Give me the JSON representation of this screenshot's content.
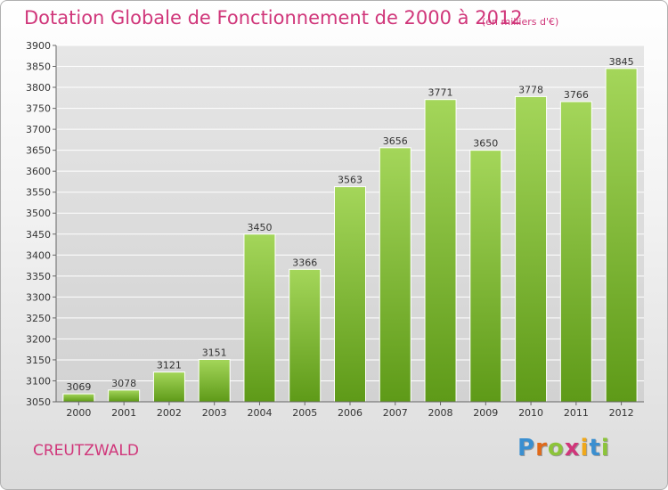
{
  "header": {
    "title": "Dotation Globale de Fonctionnement de 2000 à 2012",
    "subtitle": "(en milliers d'€)"
  },
  "footer": {
    "commune": "CREUTZWALD",
    "logo_letters": [
      "P",
      "r",
      "o",
      "x",
      "i",
      "t",
      "i"
    ],
    "logo_colors": [
      "#3a8fd0",
      "#e06a1a",
      "#8cc43a",
      "#d0367a",
      "#f0a81a",
      "#3a8fd0",
      "#8cc43a"
    ]
  },
  "chart_data": {
    "type": "bar",
    "title": "Dotation Globale de Fonctionnement de 2000 à 2012",
    "subtitle": "(en milliers d'€)",
    "xlabel": "",
    "ylabel": "",
    "categories": [
      "2000",
      "2001",
      "2002",
      "2003",
      "2004",
      "2005",
      "2006",
      "2007",
      "2008",
      "2009",
      "2010",
      "2011",
      "2012"
    ],
    "values": [
      3069,
      3078,
      3121,
      3151,
      3450,
      3366,
      3563,
      3656,
      3771,
      3650,
      3778,
      3766,
      3845
    ],
    "value_labels": [
      "3069",
      "3078",
      "3121",
      "3151",
      "3450",
      "3366",
      "3563",
      "3656",
      "3771",
      "3650",
      "3778",
      "3766",
      "3845"
    ],
    "ylim": [
      3050,
      3900
    ],
    "yticks": [
      "3050",
      "3100",
      "3150",
      "3200",
      "3250",
      "3300",
      "3350",
      "3400",
      "3450",
      "3500",
      "3550",
      "3600",
      "3650",
      "3700",
      "3750",
      "3800",
      "3850",
      "3900"
    ],
    "grid": true,
    "legend": "none",
    "colors": {
      "bar_top": "#a4d65a",
      "bar_bottom": "#5e9a18",
      "grid": "#ffffff",
      "text": "#333333"
    }
  }
}
